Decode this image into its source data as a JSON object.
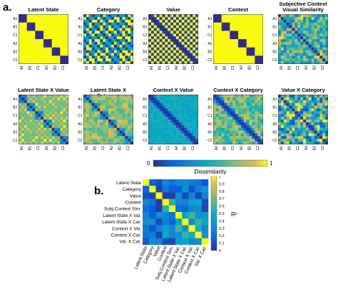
{
  "panel_a_label": "a.",
  "panel_b_label": "b.",
  "stimulus_labels": [
    "A1",
    "B1",
    "C1",
    "A2",
    "B2",
    "C2"
  ],
  "matrices": [
    {
      "title": "Latent State",
      "pattern": "latent"
    },
    {
      "title": "Category",
      "pattern": "category"
    },
    {
      "title": "Value",
      "pattern": "value"
    },
    {
      "title": "Context",
      "pattern": "context"
    },
    {
      "title": "Subjective Context Visual Similarity",
      "pattern": "subjective"
    },
    {
      "title": "Latent State X Value",
      "pattern": "latval"
    },
    {
      "title": "Latent State X Category",
      "pattern": "latcat"
    },
    {
      "title": "Context X Value",
      "pattern": "ctxval"
    },
    {
      "title": "Context X Category",
      "pattern": "ctxcat"
    },
    {
      "title": "Value X Category",
      "pattern": "valcat"
    }
  ],
  "dissimilarity_bar": {
    "label": "Dissimilarity",
    "min": "0",
    "max": "1"
  },
  "r2_matrix": {
    "models": [
      "Latent State",
      "Category",
      "Value",
      "Context",
      "Subj.Context Sim.",
      "Latent State X Val.",
      "Latent State X Cat.",
      "Context X Val.",
      "Context X Cat.",
      "Val. X Cat."
    ],
    "values": [
      [
        1.0,
        0.16,
        0.1,
        0.3,
        0.22,
        0.3,
        0.32,
        0.26,
        0.24,
        0.12
      ],
      [
        0.16,
        1.0,
        0.08,
        0.24,
        0.14,
        0.14,
        0.36,
        0.12,
        0.28,
        0.36
      ],
      [
        0.1,
        0.08,
        1.0,
        0.05,
        0.06,
        0.33,
        0.09,
        0.28,
        0.07,
        0.3
      ],
      [
        0.3,
        0.24,
        0.05,
        1.0,
        0.55,
        0.3,
        0.28,
        0.42,
        0.46,
        0.1
      ],
      [
        0.22,
        0.14,
        0.06,
        0.55,
        1.0,
        0.22,
        0.18,
        0.3,
        0.32,
        0.08
      ],
      [
        0.3,
        0.14,
        0.33,
        0.3,
        0.22,
        1.0,
        0.44,
        0.6,
        0.36,
        0.4
      ],
      [
        0.32,
        0.36,
        0.09,
        0.28,
        0.18,
        0.44,
        1.0,
        0.34,
        0.58,
        0.44
      ],
      [
        0.26,
        0.12,
        0.28,
        0.42,
        0.3,
        0.6,
        0.34,
        1.0,
        0.5,
        0.3
      ],
      [
        0.24,
        0.28,
        0.07,
        0.46,
        0.32,
        0.36,
        0.58,
        0.5,
        1.0,
        0.36
      ],
      [
        0.12,
        0.36,
        0.3,
        0.1,
        0.08,
        0.4,
        0.44,
        0.3,
        0.36,
        1.0
      ]
    ],
    "colorbar_ticks": [
      "0",
      "0.1",
      "0.2",
      "0.3",
      "0.4",
      "0.5",
      "0.6",
      "0.7",
      "0.8",
      "0.9",
      "1"
    ],
    "colorbar_label": "R²"
  },
  "colormap": "parula"
}
